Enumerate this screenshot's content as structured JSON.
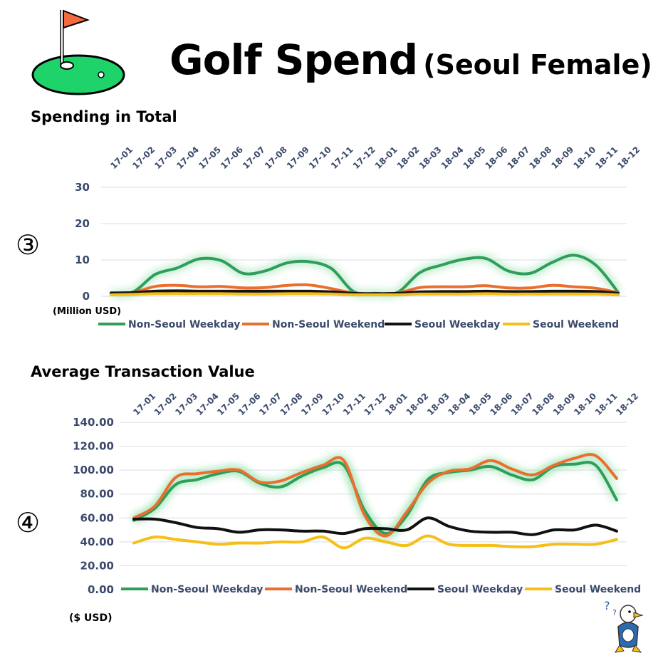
{
  "header": {
    "title": "Golf Spend",
    "subtitle": "(Seoul Female)",
    "logo_icon": "golf-flag-green-icon",
    "mascot_icon": "confused-bird-mascot-icon"
  },
  "colors": {
    "non_seoul_weekday": "#2e9e5b",
    "non_seoul_weekend": "#ea6f2f",
    "seoul_weekday": "#111111",
    "seoul_weekend": "#f5bf17",
    "flag": "#f26a3d",
    "green": "#1fd36b",
    "axis_text": "#3b4a6b",
    "grid": "#d9dde3"
  },
  "chart_data": [
    {
      "type": "line",
      "section_label": "Spending in Total",
      "marker": "③",
      "unit_label": "(Million USD)",
      "ylim": [
        0,
        30
      ],
      "yticks": [
        "0",
        "10",
        "20",
        "30"
      ],
      "grid": true,
      "legend_position": "bottom",
      "categories": [
        "17-01",
        "17-02",
        "17-03",
        "17-04",
        "17-05",
        "17-06",
        "17-07",
        "17-08",
        "17-09",
        "17-10",
        "17-11",
        "17-12",
        "18-01",
        "18-02",
        "18-03",
        "18-04",
        "18-05",
        "18-06",
        "18-07",
        "18-08",
        "18-09",
        "18-10",
        "18-11",
        "18-12"
      ],
      "series": [
        {
          "name": "Non-Seoul Weekday",
          "values": [
            0.7,
            1.2,
            6.0,
            7.8,
            10.3,
            9.8,
            6.3,
            7.0,
            9.2,
            9.5,
            7.6,
            1.3,
            0.8,
            1.1,
            6.5,
            8.6,
            10.2,
            10.4,
            7.0,
            6.3,
            9.3,
            11.3,
            8.5,
            1.1
          ]
        },
        {
          "name": "Non-Seoul Weekend",
          "values": [
            0.7,
            1.0,
            2.7,
            3.0,
            2.6,
            2.7,
            2.3,
            2.4,
            3.0,
            3.1,
            2.1,
            0.9,
            0.7,
            0.9,
            2.4,
            2.6,
            2.6,
            2.9,
            2.3,
            2.3,
            3.0,
            2.6,
            2.2,
            1.0
          ]
        },
        {
          "name": "Seoul Weekday",
          "values": [
            0.9,
            1.0,
            1.4,
            1.5,
            1.4,
            1.4,
            1.4,
            1.4,
            1.4,
            1.4,
            1.2,
            0.8,
            0.7,
            0.8,
            1.2,
            1.3,
            1.3,
            1.4,
            1.3,
            1.3,
            1.4,
            1.4,
            1.3,
            0.8
          ]
        },
        {
          "name": "Seoul Weekend",
          "values": [
            0.4,
            0.5,
            0.7,
            0.7,
            0.7,
            0.7,
            0.6,
            0.6,
            0.7,
            0.7,
            0.6,
            0.4,
            0.4,
            0.4,
            0.6,
            0.6,
            0.6,
            0.7,
            0.6,
            0.6,
            0.6,
            0.6,
            0.6,
            0.4
          ]
        }
      ]
    },
    {
      "type": "line",
      "section_label": "Average Transaction Value",
      "marker": "④",
      "unit_label": "($ USD)",
      "ylim": [
        0,
        140
      ],
      "yticks": [
        "0.00",
        "20.00",
        "40.00",
        "60.00",
        "80.00",
        "100.00",
        "120.00",
        "140.00"
      ],
      "grid": true,
      "legend_position": "bottom",
      "categories": [
        "17-01",
        "17-02",
        "17-03",
        "17-04",
        "17-05",
        "17-06",
        "17-07",
        "17-08",
        "17-09",
        "17-10",
        "17-11",
        "17-12",
        "18-01",
        "18-02",
        "18-03",
        "18-04",
        "18-05",
        "18-06",
        "18-07",
        "18-08",
        "18-09",
        "18-10",
        "18-11",
        "18-12"
      ],
      "series": [
        {
          "name": "Non-Seoul Weekday",
          "values": [
            58,
            68,
            88,
            92,
            97,
            99,
            89,
            86,
            95,
            102,
            104,
            66,
            47,
            62,
            92,
            98,
            100,
            103,
            96,
            92,
            103,
            105,
            104,
            75
          ]
        },
        {
          "name": "Non-Seoul Weekend",
          "values": [
            60,
            70,
            94,
            97,
            99,
            100,
            90,
            91,
            98,
            104,
            108,
            62,
            45,
            65,
            89,
            99,
            101,
            108,
            101,
            96,
            104,
            110,
            112,
            93
          ]
        },
        {
          "name": "Seoul Weekday",
          "values": [
            59,
            59,
            56,
            52,
            51,
            48,
            50,
            50,
            49,
            49,
            47,
            51,
            51,
            50,
            60,
            53,
            49,
            48,
            48,
            46,
            50,
            50,
            54,
            49
          ]
        },
        {
          "name": "Seoul Weekend",
          "values": [
            39,
            44,
            42,
            40,
            38,
            39,
            39,
            40,
            40,
            44,
            35,
            43,
            40,
            37,
            45,
            38,
            37,
            37,
            36,
            36,
            38,
            38,
            38,
            42
          ]
        }
      ]
    }
  ]
}
